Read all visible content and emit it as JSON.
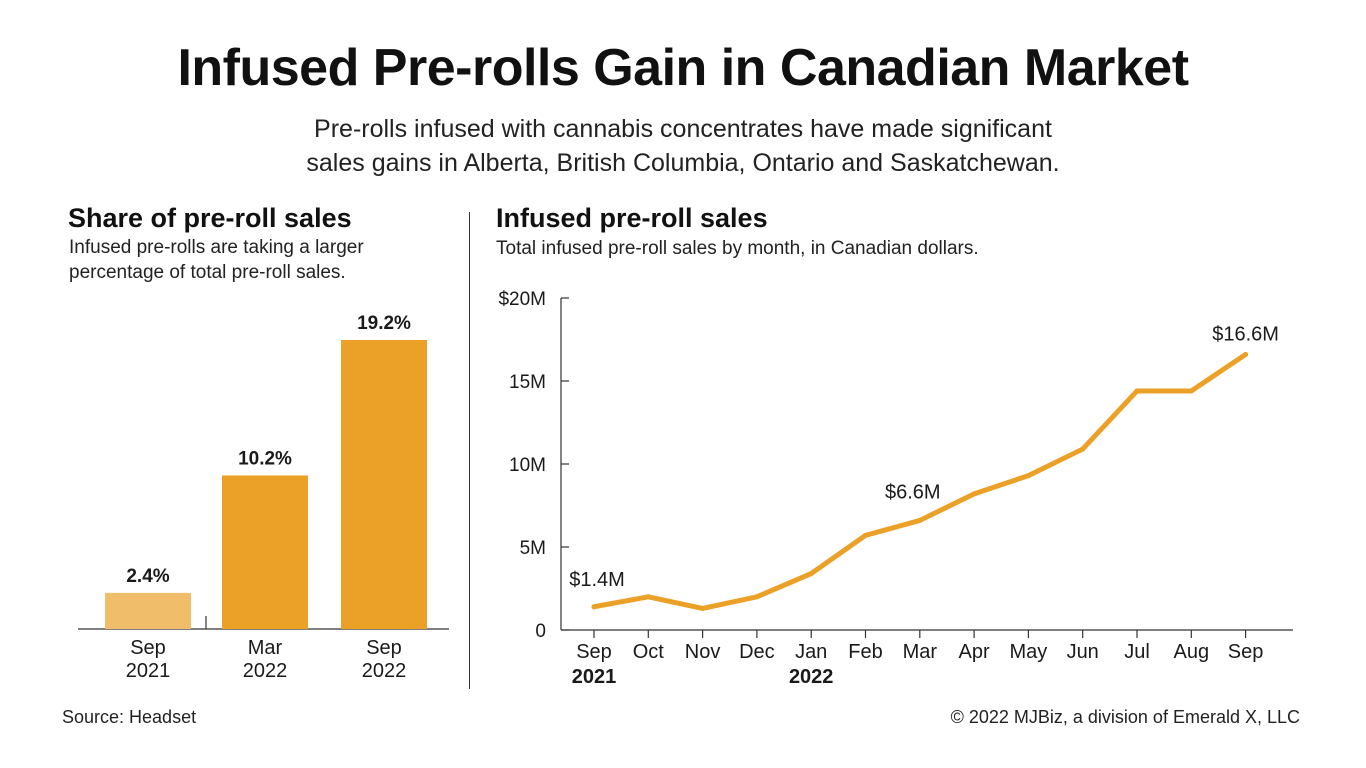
{
  "header": {
    "title": "Infused Pre-rolls Gain in Canadian Market",
    "subtitle": "Pre-rolls infused with cannabis concentrates have made significant sales gains in Alberta, British Columbia, Ontario and Saskatchewan."
  },
  "colors": {
    "accent": "#EBA027",
    "accent_light": "#F0BE6A",
    "text": "#1a1a1a"
  },
  "chart_data": [
    {
      "type": "bar",
      "title": "Share of pre-roll sales",
      "subtitle": "Infused pre-rolls are taking a larger percentage of total pre-roll sales.",
      "categories": [
        [
          "Sep",
          "2021"
        ],
        [
          "Mar",
          "2022"
        ],
        [
          "Sep",
          "2022"
        ]
      ],
      "values": [
        2.4,
        10.2,
        19.2
      ],
      "data_labels": [
        "2.4%",
        "10.2%",
        "19.2%"
      ],
      "ylim": [
        0,
        20
      ],
      "grid": false
    },
    {
      "type": "line",
      "title": "Infused pre-roll sales",
      "subtitle": "Total infused pre-roll sales by month, in Canadian dollars.",
      "x": [
        "Sep",
        "Oct",
        "Nov",
        "Dec",
        "Jan",
        "Feb",
        "Mar",
        "Apr",
        "May",
        "Jun",
        "Jul",
        "Aug",
        "Sep"
      ],
      "x_year_labels": [
        {
          "index": 0,
          "label": "2021"
        },
        {
          "index": 4,
          "label": "2022"
        }
      ],
      "series": [
        {
          "values": [
            1.4,
            2.0,
            1.3,
            2.0,
            3.4,
            5.7,
            6.6,
            8.2,
            9.3,
            10.9,
            14.4,
            14.4,
            16.6
          ]
        }
      ],
      "annotations": [
        {
          "index": 0,
          "label": "$1.4M"
        },
        {
          "index": 6,
          "label": "$6.6M"
        },
        {
          "index": 12,
          "label": "$16.6M"
        }
      ],
      "yticks": [
        {
          "value": 0,
          "label": "0"
        },
        {
          "value": 5,
          "label": "5M"
        },
        {
          "value": 10,
          "label": "10M"
        },
        {
          "value": 15,
          "label": "15M"
        },
        {
          "value": 20,
          "label": "$20M"
        }
      ],
      "ylim": [
        0,
        20
      ],
      "grid": false
    }
  ],
  "footer": {
    "source": "Source: Headset",
    "copyright": "© 2022 MJBiz, a division of Emerald X, LLC"
  }
}
